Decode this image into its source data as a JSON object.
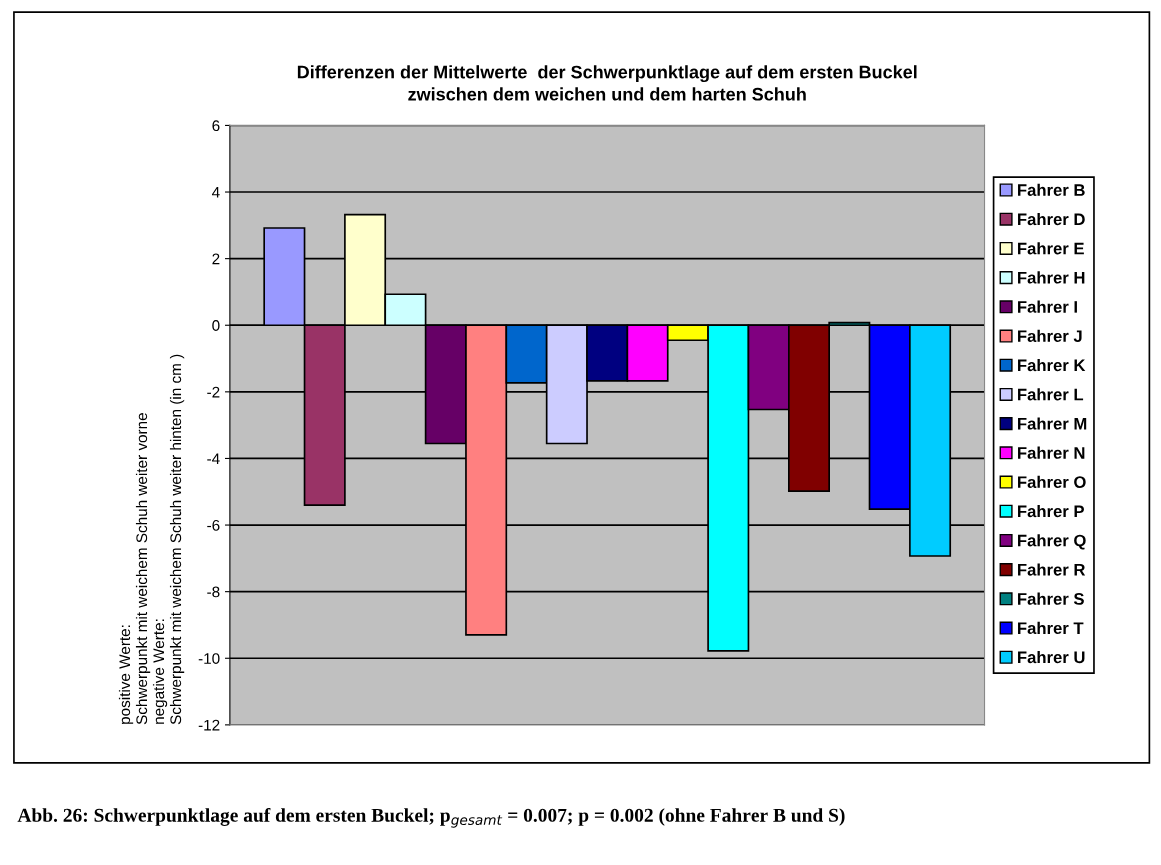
{
  "chart_data": {
    "type": "bar",
    "title": "Differenzen der Mittelwerte  der Schwerpunktlage auf dem ersten Buckel\nzwischen dem weichen und dem harten Schuh",
    "ylabel": "positive Werte:\nSchwerpunkt mit weichem Schuh weiter vorne\nnegative Werte:\nSchwerpunkt mit weichem Schuh weiter hinten (in cm )",
    "categories": [
      null
    ],
    "series": [
      {
        "name": "Fahrer B",
        "color": "#9999ff",
        "values": [
          2.92
        ]
      },
      {
        "name": "Fahrer D",
        "color": "#993366",
        "values": [
          -5.4
        ]
      },
      {
        "name": "Fahrer E",
        "color": "#ffffcc",
        "values": [
          3.32
        ]
      },
      {
        "name": "Fahrer H",
        "color": "#ccffff",
        "values": [
          0.93
        ]
      },
      {
        "name": "Fahrer I",
        "color": "#660066",
        "values": [
          -3.55
        ]
      },
      {
        "name": "Fahrer J",
        "color": "#ff8080",
        "values": [
          -9.3
        ]
      },
      {
        "name": "Fahrer K",
        "color": "#0066cc",
        "values": [
          -1.73
        ]
      },
      {
        "name": "Fahrer L",
        "color": "#ccccff",
        "values": [
          -3.55
        ]
      },
      {
        "name": "Fahrer M",
        "color": "#000080",
        "values": [
          -1.67
        ]
      },
      {
        "name": "Fahrer N",
        "color": "#ff00ff",
        "values": [
          -1.67
        ]
      },
      {
        "name": "Fahrer O",
        "color": "#ffff00",
        "values": [
          -0.45
        ]
      },
      {
        "name": "Fahrer P",
        "color": "#00ffff",
        "values": [
          -9.78
        ]
      },
      {
        "name": "Fahrer Q",
        "color": "#800080",
        "values": [
          -2.53
        ]
      },
      {
        "name": "Fahrer R",
        "color": "#800000",
        "values": [
          -4.98
        ]
      },
      {
        "name": "Fahrer S",
        "color": "#008080",
        "values": [
          0.08
        ]
      },
      {
        "name": "Fahrer T",
        "color": "#0000ff",
        "values": [
          -5.52
        ]
      },
      {
        "name": "Fahrer U",
        "color": "#00ccff",
        "values": [
          -6.93
        ]
      }
    ],
    "ylim": [
      -12,
      6
    ],
    "yticks": [
      -12,
      -10,
      -8,
      -6,
      -4,
      -2,
      0,
      2,
      4,
      6
    ],
    "grid": "y",
    "legend": "right",
    "annotations": [
      "Abb. 26: Schwerpunktlage auf dem ersten Buckel; p$_{gesamt}$ = 0.007; p = 0.002 (ohne Fahrer B und S)"
    ]
  }
}
